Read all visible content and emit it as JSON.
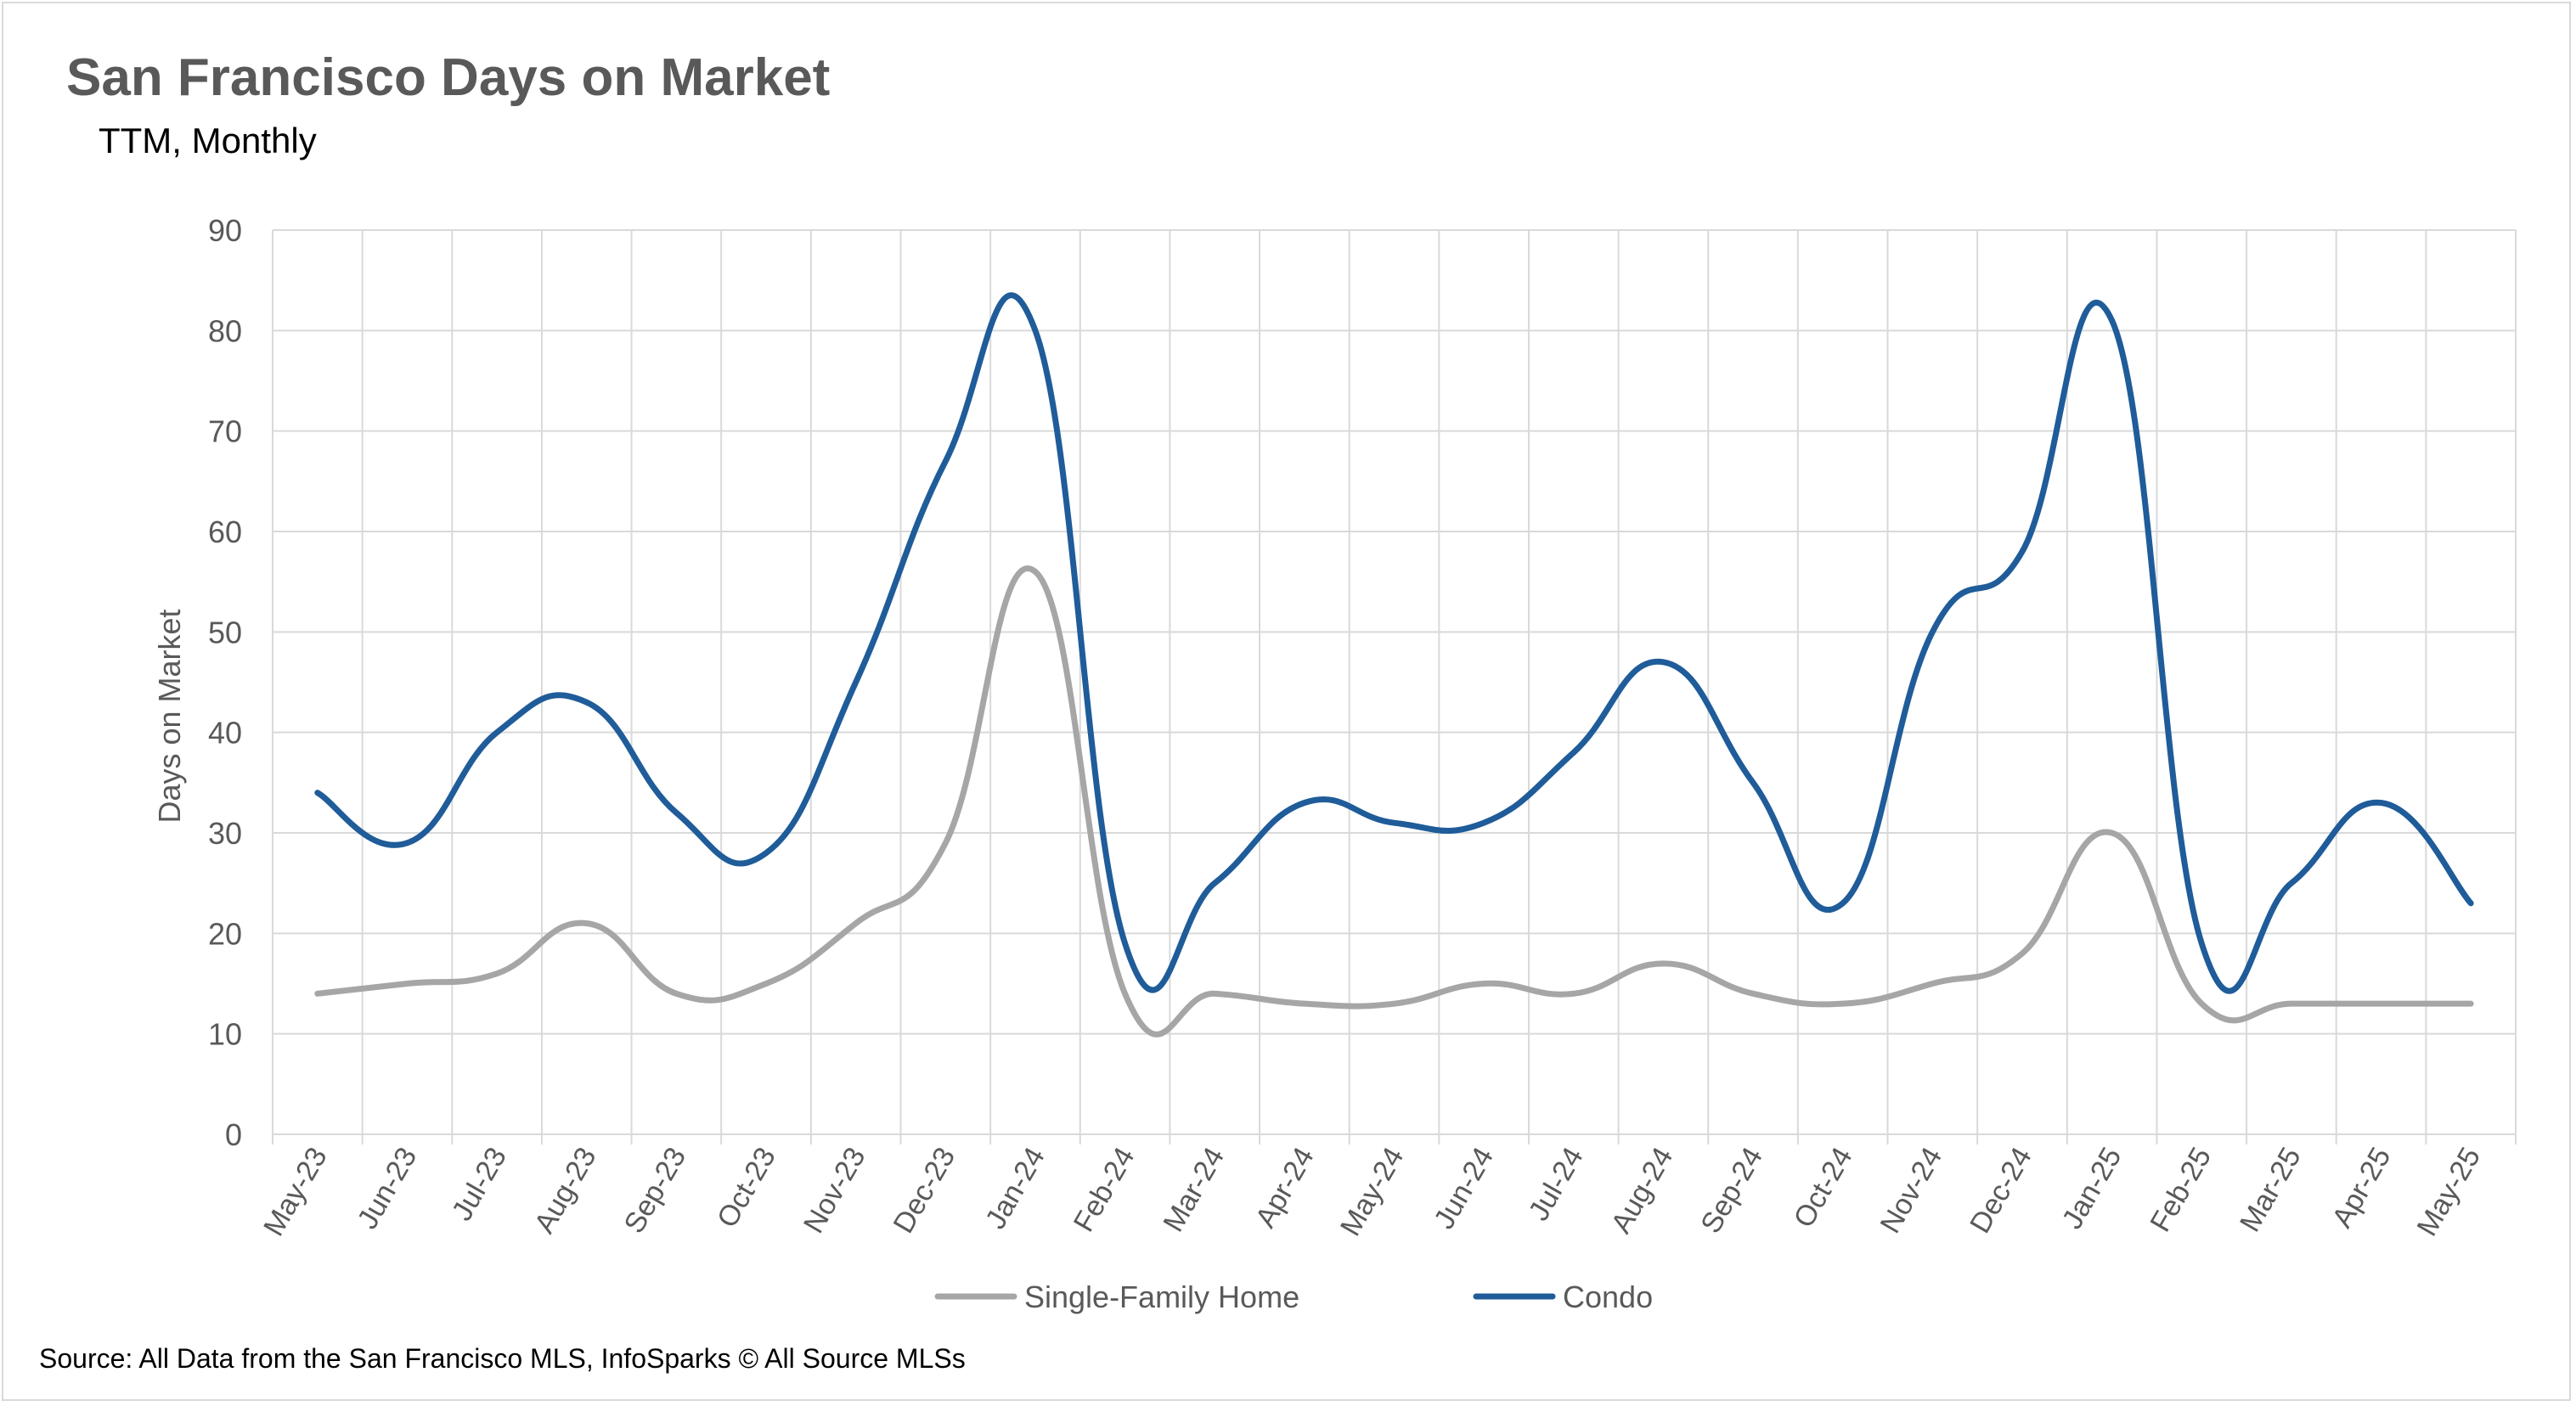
{
  "title": "San Francisco Days on Market",
  "subtitle": "TTM, Monthly",
  "source": "Source: All Data from the San Francisco MLS, InfoSparks © All Source MLSs",
  "chart_data": {
    "type": "line",
    "title": "San Francisco Days on Market",
    "subtitle": "TTM, Monthly",
    "xlabel": "",
    "ylabel": "Days on Market",
    "ylim": [
      0,
      90
    ],
    "yticks": [
      0,
      10,
      20,
      30,
      40,
      50,
      60,
      70,
      80,
      90
    ],
    "grid": true,
    "smooth": true,
    "legend_position": "bottom",
    "categories": [
      "May-23",
      "Jun-23",
      "Jul-23",
      "Aug-23",
      "Sep-23",
      "Oct-23",
      "Nov-23",
      "Dec-23",
      "Jan-24",
      "Feb-24",
      "Mar-24",
      "Apr-24",
      "May-24",
      "Jun-24",
      "Jul-24",
      "Aug-24",
      "Sep-24",
      "Oct-24",
      "Nov-24",
      "Dec-24",
      "Jan-25",
      "Feb-25",
      "Mar-25",
      "Apr-25",
      "May-25"
    ],
    "series": [
      {
        "name": "Single-Family Home",
        "color": "#a6a6a6",
        "values": [
          14,
          15,
          16,
          21,
          14,
          15,
          21,
          29,
          56,
          14,
          14,
          13,
          13,
          15,
          14,
          17,
          14,
          13,
          15,
          18,
          30,
          13,
          13,
          13,
          13
        ]
      },
      {
        "name": "Condo",
        "color": "#1f5c99",
        "values": [
          34,
          29,
          40,
          43,
          32,
          28,
          45,
          67,
          80,
          19,
          25,
          33,
          31,
          31,
          38,
          47,
          35,
          23,
          50,
          58,
          81,
          19,
          25,
          33,
          23
        ]
      }
    ]
  }
}
